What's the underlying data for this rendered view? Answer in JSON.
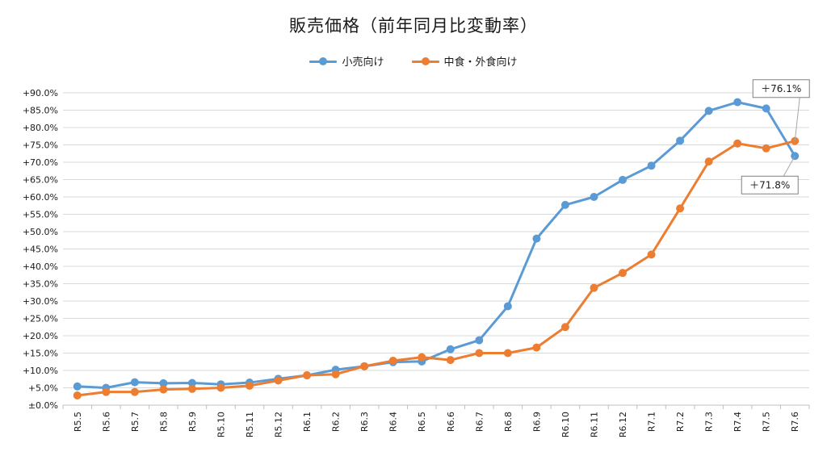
{
  "chart_data": {
    "type": "line",
    "title": "販売価格（前年同月比変動率）",
    "categories": [
      "R5.5",
      "R5.6",
      "R5.7",
      "R5.8",
      "R5.9",
      "R5.10",
      "R5.11",
      "R5.12",
      "R6.1",
      "R6.2",
      "R6.3",
      "R6.4",
      "R6.5",
      "R6.6",
      "R6.7",
      "R6.8",
      "R6.9",
      "R6.10",
      "R6.11",
      "R6.12",
      "R7.1",
      "R7.2",
      "R7.3",
      "R7.4",
      "R7.5",
      "R7.6"
    ],
    "series": [
      {
        "name": "小売向け",
        "color": "#5b9bd5",
        "values": [
          5.4,
          5.0,
          6.6,
          6.3,
          6.4,
          6.0,
          6.5,
          7.6,
          8.6,
          10.2,
          11.2,
          12.4,
          12.6,
          16.1,
          18.7,
          28.5,
          48.0,
          57.7,
          60.0,
          64.9,
          69.0,
          76.2,
          84.8,
          87.3,
          85.5,
          71.8
        ]
      },
      {
        "name": "中食・外食向け",
        "color": "#ed7d31",
        "values": [
          2.8,
          3.8,
          3.8,
          4.5,
          4.7,
          5.0,
          5.6,
          7.1,
          8.6,
          8.9,
          11.2,
          12.8,
          13.8,
          13.0,
          15.0,
          15.0,
          16.6,
          22.5,
          33.8,
          38.1,
          43.4,
          56.7,
          70.2,
          75.4,
          74.0,
          76.1
        ]
      }
    ],
    "y_ticks": [
      "±0.0%",
      "+5.0%",
      "+10.0%",
      "+15.0%",
      "+20.0%",
      "+25.0%",
      "+30.0%",
      "+35.0%",
      "+40.0%",
      "+45.0%",
      "+50.0%",
      "+55.0%",
      "+60.0%",
      "+65.0%",
      "+70.0%",
      "+75.0%",
      "+80.0%",
      "+85.0%",
      "+90.0%"
    ],
    "ylim": [
      0,
      90
    ],
    "grid": true,
    "legend_position": "top-center",
    "annotations": [
      {
        "text": "＋76.1%",
        "series": 1,
        "index": 25,
        "placement": "above"
      },
      {
        "text": "＋71.8%",
        "series": 0,
        "index": 25,
        "placement": "below"
      }
    ]
  }
}
